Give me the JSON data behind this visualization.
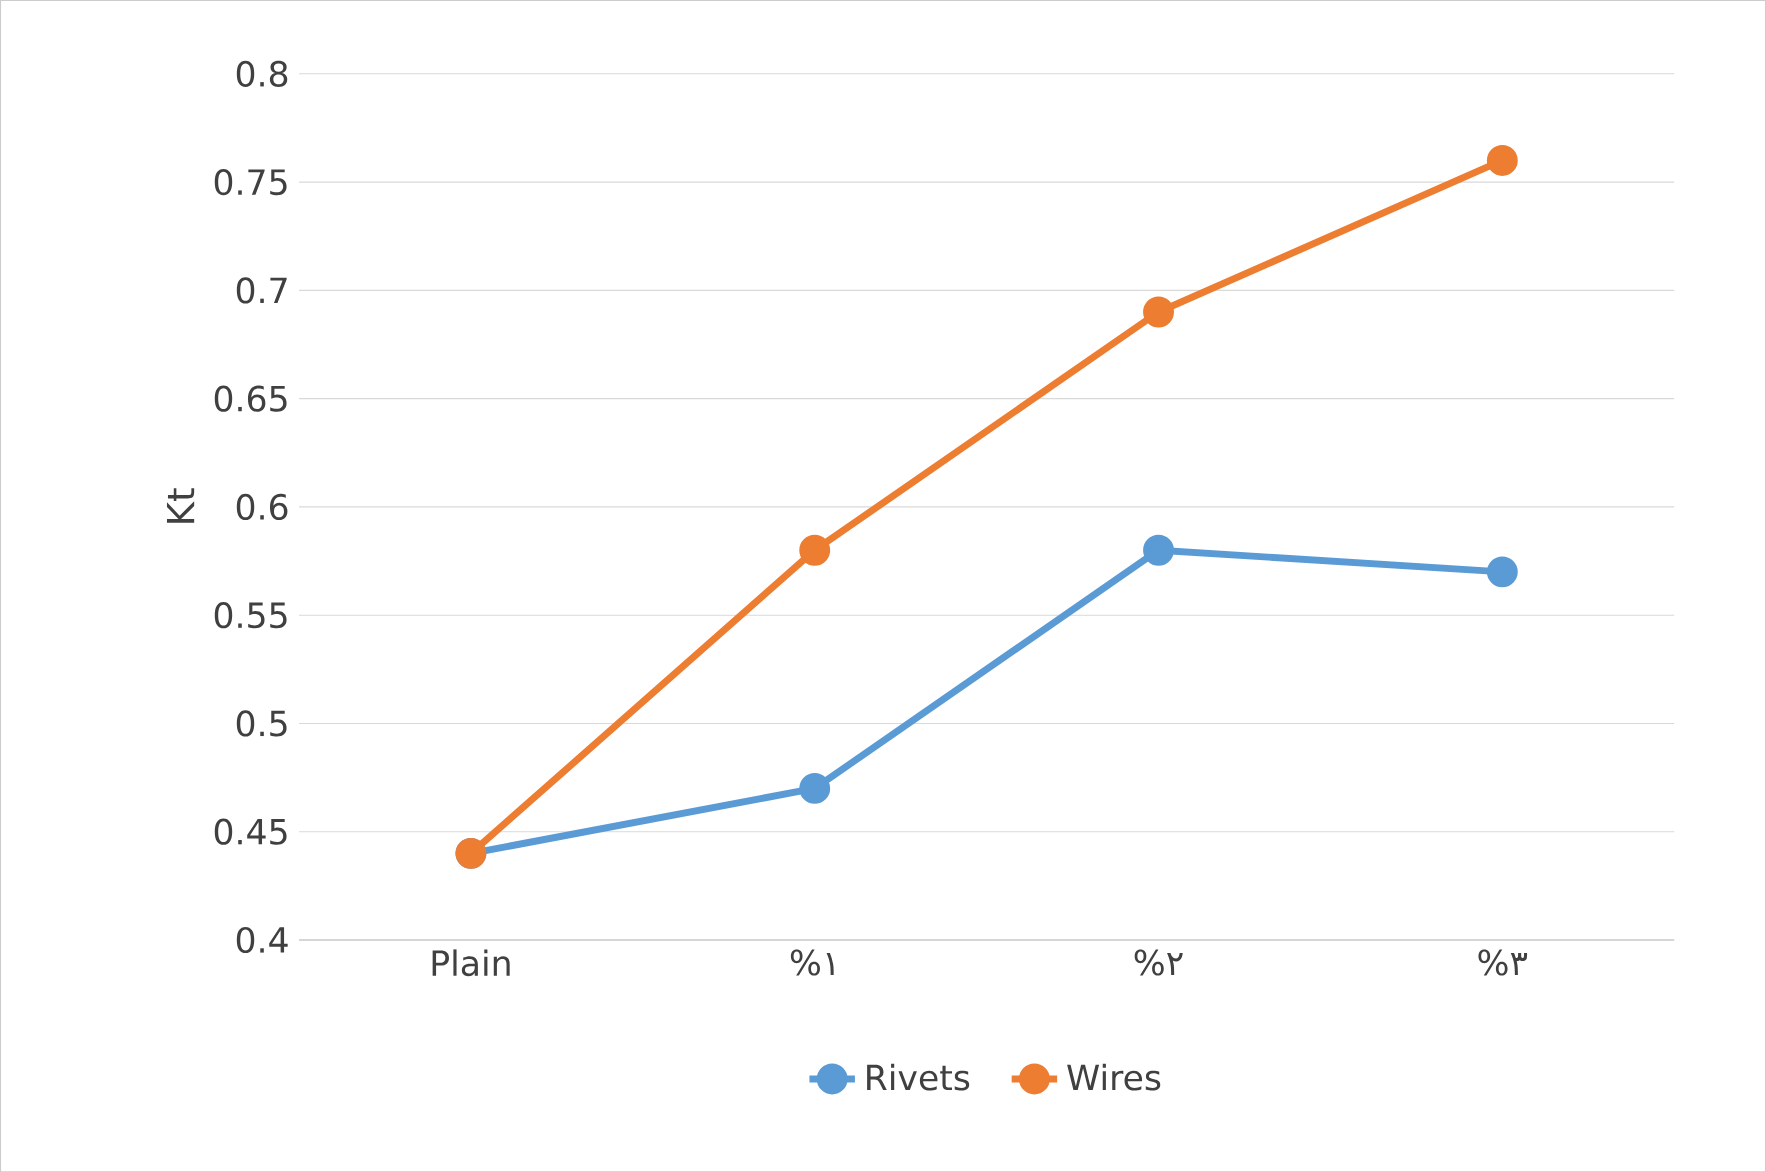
{
  "chart_data": {
    "type": "line",
    "ylabel": "Kt",
    "categories": [
      "Plain",
      "%١",
      "%٢",
      "%٣"
    ],
    "series": [
      {
        "name": "Rivets",
        "color": "#5b9bd5",
        "values": [
          0.44,
          0.47,
          0.58,
          0.57
        ]
      },
      {
        "name": "Wires",
        "color": "#ed7d31",
        "values": [
          0.44,
          0.58,
          0.69,
          0.76
        ]
      }
    ],
    "ylim": [
      0.4,
      0.8
    ],
    "yticks": [
      0.4,
      0.45,
      0.5,
      0.55,
      0.6,
      0.65,
      0.7,
      0.75,
      0.8
    ],
    "grid": "y",
    "legend": "bottom",
    "marker": "circle",
    "line_style": "solid"
  }
}
